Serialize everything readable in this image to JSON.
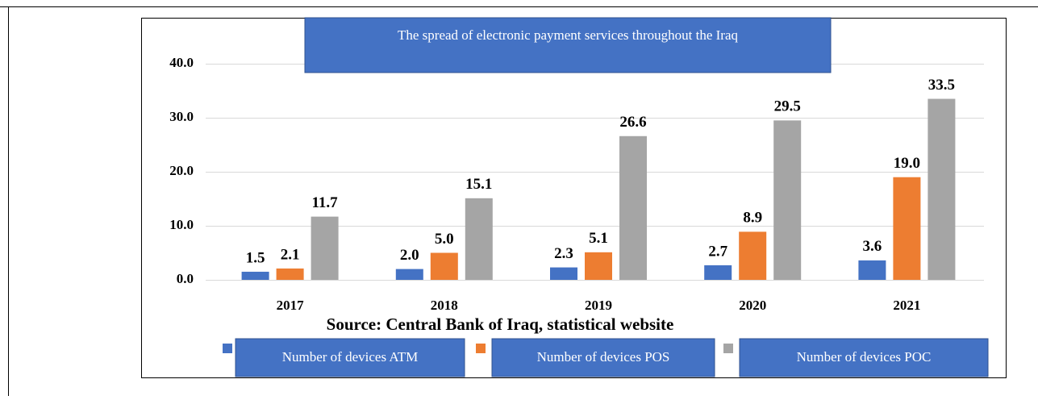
{
  "chart_data": {
    "type": "bar",
    "title": "The spread of electronic payment services throughout the Iraq",
    "source": "Source: Central Bank of Iraq, statistical website",
    "categories": [
      "2017",
      "2018",
      "2019",
      "2020",
      "2021"
    ],
    "series": [
      {
        "name": "Number of devices ATM",
        "color": "#4472c4",
        "values": [
          1.5,
          2.0,
          2.3,
          2.7,
          3.6
        ],
        "value_labels": [
          "1.5",
          "2.0",
          "2.3",
          "2.7",
          "3.6"
        ]
      },
      {
        "name": "Number of devices POS",
        "color": "#ed7d31",
        "values": [
          2.1,
          5.0,
          5.1,
          8.9,
          19.0
        ],
        "value_labels": [
          "2.1",
          "5.0",
          "5.1",
          "8.9",
          "19.0"
        ]
      },
      {
        "name": "Number of devices POC",
        "color": "#a5a5a5",
        "values": [
          11.7,
          15.1,
          26.6,
          29.5,
          33.5
        ],
        "value_labels": [
          "11.7",
          "15.1",
          "26.6",
          "29.5",
          "33.5"
        ]
      }
    ],
    "ylim": [
      0,
      40
    ],
    "yticks": [
      {
        "value": 0,
        "label": "0.0"
      },
      {
        "value": 10,
        "label": "10.0"
      },
      {
        "value": 20,
        "label": "20.0"
      },
      {
        "value": 30,
        "label": "30.0"
      },
      {
        "value": 40,
        "label": "40.0"
      }
    ],
    "grid": true
  }
}
